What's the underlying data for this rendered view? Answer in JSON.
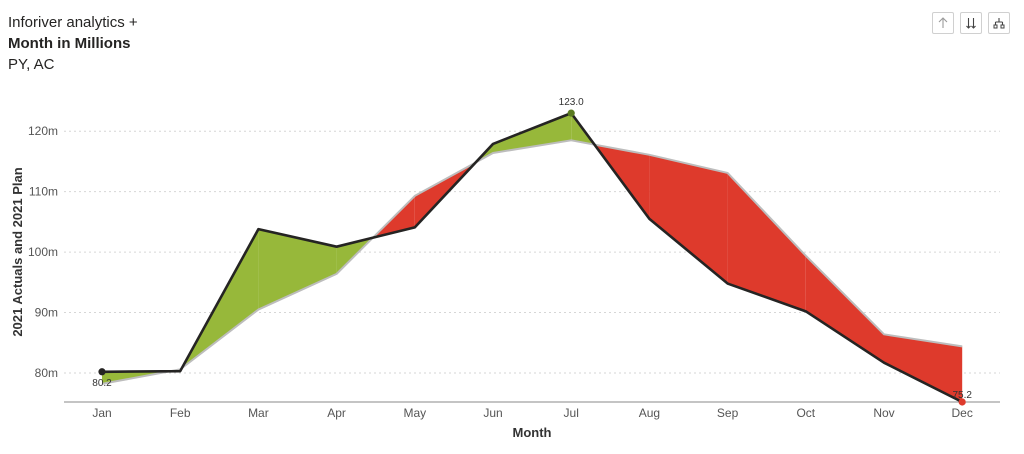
{
  "header": {
    "title_line1": "Inforiver analytics +",
    "title_line2": "Month in Millions",
    "title_line3": "PY, AC"
  },
  "toolbar": {
    "buttons": [
      {
        "icon": "arrow-up-icon"
      },
      {
        "icon": "sort-descending-icon"
      },
      {
        "icon": "hierarchy-icon"
      }
    ]
  },
  "chart_data": {
    "type": "line",
    "xlabel": "Month",
    "ylabel": "2021 Actuals and 2021 Plan",
    "categories": [
      "Jan",
      "Feb",
      "Mar",
      "Apr",
      "May",
      "Jun",
      "Jul",
      "Aug",
      "Sep",
      "Oct",
      "Nov",
      "Dec"
    ],
    "yticks": [
      80,
      90,
      100,
      110,
      120
    ],
    "ytick_labels": [
      "80m",
      "90m",
      "100m",
      "110m",
      "120m"
    ],
    "ylim": [
      75.2,
      125.5
    ],
    "grid": true,
    "series": [
      {
        "role": "actual",
        "values": [
          80.2,
          80.3,
          103.8,
          100.9,
          104.1,
          117.9,
          123.0,
          105.5,
          94.8,
          90.2,
          81.7,
          75.2
        ],
        "color": "#252423"
      },
      {
        "role": "plan",
        "values": [
          78.2,
          80.6,
          90.5,
          96.4,
          109.3,
          116.4,
          118.5,
          116.1,
          113.1,
          99.4,
          86.4,
          84.4
        ],
        "color": "#bdbdbd"
      }
    ],
    "data_labels": [
      {
        "index": 0,
        "text": "80.2"
      },
      {
        "index": 6,
        "text": "123.0"
      },
      {
        "index": 11,
        "text": "75.2"
      }
    ],
    "colors": {
      "positive": "#97b83a",
      "negative": "#de3a2c"
    }
  }
}
